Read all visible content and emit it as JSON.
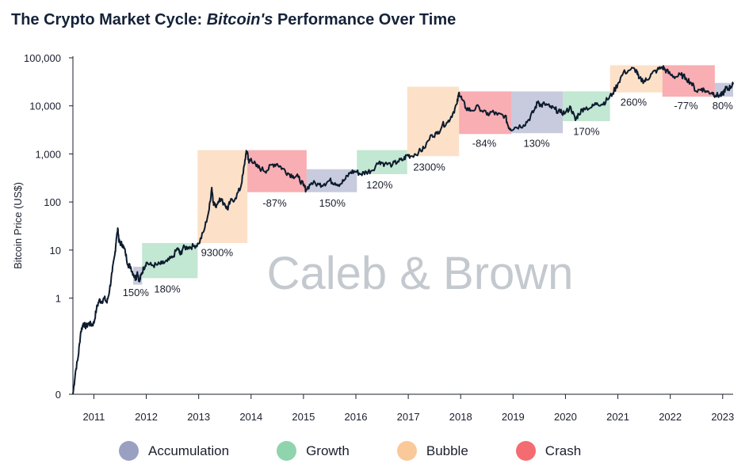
{
  "title": {
    "prefix": "The Crypto Market Cycle: ",
    "emph": "Bitcoin's",
    "suffix": " Performance Over Time"
  },
  "watermark": "Caleb & Brown",
  "colors": {
    "accumulation": "#9aa0c2",
    "growth": "#8fd4ad",
    "bubble": "#f9c99a",
    "crash": "#f36c72",
    "line": "#0d1b2e",
    "axis": "#1a1f2e"
  },
  "legend": [
    {
      "key": "accumulation",
      "label": "Accumulation"
    },
    {
      "key": "growth",
      "label": "Growth"
    },
    {
      "key": "bubble",
      "label": "Bubble"
    },
    {
      "key": "crash",
      "label": "Crash"
    }
  ],
  "chart_data": {
    "type": "line",
    "title": "The Crypto Market Cycle: Bitcoin's Performance Over Time",
    "ylabel": "Bitcoin Price (US$)",
    "xlabel": "",
    "y_scale": "log",
    "ylim": [
      0.01,
      100000
    ],
    "xlim": [
      2010.6,
      2023.2
    ],
    "y_ticks": [
      {
        "value": 0.01,
        "label": "0"
      },
      {
        "value": 1,
        "label": "1"
      },
      {
        "value": 10,
        "label": "10"
      },
      {
        "value": 100,
        "label": "100"
      },
      {
        "value": 1000,
        "label": "1,000"
      },
      {
        "value": 10000,
        "label": "10,000"
      },
      {
        "value": 100000,
        "label": "100,000"
      }
    ],
    "x_ticks": [
      "2011",
      "2012",
      "2013",
      "2014",
      "2015",
      "2016",
      "2017",
      "2018",
      "2019",
      "2020",
      "2021",
      "2022",
      "2023"
    ],
    "series": [
      {
        "name": "Bitcoin Price",
        "points": [
          [
            2010.6,
            0.01
          ],
          [
            2010.65,
            0.03
          ],
          [
            2010.7,
            0.06
          ],
          [
            2010.75,
            0.2
          ],
          [
            2010.8,
            0.3
          ],
          [
            2010.85,
            0.25
          ],
          [
            2010.9,
            0.3
          ],
          [
            2010.95,
            0.28
          ],
          [
            2011.0,
            0.3
          ],
          [
            2011.05,
            0.6
          ],
          [
            2011.1,
            0.9
          ],
          [
            2011.15,
            0.85
          ],
          [
            2011.2,
            1.0
          ],
          [
            2011.25,
            0.8
          ],
          [
            2011.3,
            1.5
          ],
          [
            2011.35,
            3.5
          ],
          [
            2011.4,
            8
          ],
          [
            2011.43,
            18
          ],
          [
            2011.46,
            27
          ],
          [
            2011.48,
            15
          ],
          [
            2011.5,
            14
          ],
          [
            2011.55,
            13
          ],
          [
            2011.6,
            9
          ],
          [
            2011.65,
            5
          ],
          [
            2011.7,
            4.5
          ],
          [
            2011.75,
            3.2
          ],
          [
            2011.8,
            2.5
          ],
          [
            2011.83,
            3.5
          ],
          [
            2011.87,
            2.2
          ],
          [
            2011.9,
            3.0
          ],
          [
            2011.95,
            4.2
          ],
          [
            2012.0,
            5.5
          ],
          [
            2012.1,
            4.8
          ],
          [
            2012.2,
            4.9
          ],
          [
            2012.3,
            5.2
          ],
          [
            2012.4,
            5.8
          ],
          [
            2012.5,
            7
          ],
          [
            2012.6,
            11
          ],
          [
            2012.65,
            8
          ],
          [
            2012.7,
            11
          ],
          [
            2012.8,
            11.5
          ],
          [
            2012.9,
            12
          ],
          [
            2013.0,
            13.5
          ],
          [
            2013.1,
            25
          ],
          [
            2013.2,
            70
          ],
          [
            2013.25,
            200
          ],
          [
            2013.28,
            100
          ],
          [
            2013.32,
            80
          ],
          [
            2013.4,
            120
          ],
          [
            2013.5,
            90
          ],
          [
            2013.55,
            70
          ],
          [
            2013.6,
            100
          ],
          [
            2013.7,
            120
          ],
          [
            2013.8,
            200
          ],
          [
            2013.85,
            400
          ],
          [
            2013.9,
            1000
          ],
          [
            2013.93,
            1100
          ],
          [
            2013.96,
            650
          ],
          [
            2014.0,
            800
          ],
          [
            2014.1,
            550
          ],
          [
            2014.2,
            480
          ],
          [
            2014.3,
            450
          ],
          [
            2014.4,
            600
          ],
          [
            2014.5,
            620
          ],
          [
            2014.6,
            500
          ],
          [
            2014.7,
            400
          ],
          [
            2014.8,
            350
          ],
          [
            2014.9,
            330
          ],
          [
            2015.0,
            220
          ],
          [
            2015.05,
            180
          ],
          [
            2015.15,
            250
          ],
          [
            2015.3,
            230
          ],
          [
            2015.4,
            240
          ],
          [
            2015.5,
            280
          ],
          [
            2015.6,
            250
          ],
          [
            2015.7,
            235
          ],
          [
            2015.8,
            300
          ],
          [
            2015.9,
            420
          ],
          [
            2016.0,
            430
          ],
          [
            2016.1,
            380
          ],
          [
            2016.2,
            420
          ],
          [
            2016.3,
            450
          ],
          [
            2016.45,
            700
          ],
          [
            2016.55,
            620
          ],
          [
            2016.7,
            600
          ],
          [
            2016.8,
            700
          ],
          [
            2016.9,
            750
          ],
          [
            2016.98,
            950
          ],
          [
            2017.05,
            900
          ],
          [
            2017.2,
            1100
          ],
          [
            2017.3,
            1300
          ],
          [
            2017.45,
            2500
          ],
          [
            2017.55,
            2600
          ],
          [
            2017.65,
            4000
          ],
          [
            2017.75,
            4500
          ],
          [
            2017.85,
            7000
          ],
          [
            2017.93,
            11000
          ],
          [
            2017.97,
            19000
          ],
          [
            2018.02,
            14000
          ],
          [
            2018.1,
            9000
          ],
          [
            2018.2,
            8000
          ],
          [
            2018.35,
            9500
          ],
          [
            2018.5,
            6500
          ],
          [
            2018.6,
            7500
          ],
          [
            2018.7,
            6500
          ],
          [
            2018.85,
            6300
          ],
          [
            2018.9,
            4000
          ],
          [
            2018.95,
            3300
          ],
          [
            2019.05,
            3600
          ],
          [
            2019.2,
            4000
          ],
          [
            2019.3,
            5200
          ],
          [
            2019.4,
            8000
          ],
          [
            2019.48,
            12500
          ],
          [
            2019.53,
            10000
          ],
          [
            2019.6,
            11000
          ],
          [
            2019.7,
            9500
          ],
          [
            2019.8,
            8500
          ],
          [
            2019.9,
            7300
          ],
          [
            2020.0,
            7200
          ],
          [
            2020.1,
            9500
          ],
          [
            2020.19,
            5000
          ],
          [
            2020.25,
            6800
          ],
          [
            2020.35,
            9000
          ],
          [
            2020.5,
            9300
          ],
          [
            2020.6,
            11500
          ],
          [
            2020.7,
            10800
          ],
          [
            2020.8,
            13500
          ],
          [
            2020.9,
            18000
          ],
          [
            2021.0,
            29000
          ],
          [
            2021.1,
            48000
          ],
          [
            2021.25,
            58000
          ],
          [
            2021.35,
            56000
          ],
          [
            2021.4,
            37000
          ],
          [
            2021.5,
            33000
          ],
          [
            2021.55,
            35000
          ],
          [
            2021.65,
            47000
          ],
          [
            2021.75,
            55000
          ],
          [
            2021.85,
            64000
          ],
          [
            2021.9,
            57000
          ],
          [
            2022.0,
            45000
          ],
          [
            2022.1,
            40000
          ],
          [
            2022.2,
            44000
          ],
          [
            2022.3,
            38000
          ],
          [
            2022.4,
            30000
          ],
          [
            2022.5,
            20000
          ],
          [
            2022.6,
            23000
          ],
          [
            2022.7,
            19500
          ],
          [
            2022.8,
            19000
          ],
          [
            2022.87,
            16500
          ],
          [
            2022.95,
            16700
          ],
          [
            2023.0,
            17000
          ],
          [
            2023.05,
            23000
          ],
          [
            2023.1,
            22000
          ],
          [
            2023.15,
            25000
          ],
          [
            2023.2,
            28000
          ]
        ]
      }
    ],
    "phases": [
      {
        "type": "accumulation",
        "x0": 2011.75,
        "x1": 2011.92,
        "ylo": 1.9,
        "yhi": 4.5,
        "label": "150%",
        "label_x": 2011.8,
        "label_y": 1.1
      },
      {
        "type": "growth",
        "x0": 2011.92,
        "x1": 2012.98,
        "ylo": 2.6,
        "yhi": 14,
        "label": "180%",
        "label_x": 2012.4,
        "label_y": 1.3
      },
      {
        "type": "bubble",
        "x0": 2012.98,
        "x1": 2013.93,
        "ylo": 14,
        "yhi": 1200,
        "label": "9300%",
        "label_x": 2013.35,
        "label_y": 7.5
      },
      {
        "type": "crash",
        "x0": 2013.93,
        "x1": 2015.06,
        "ylo": 160,
        "yhi": 1200,
        "label": "-87%",
        "label_x": 2014.45,
        "label_y": 80
      },
      {
        "type": "accumulation",
        "x0": 2015.06,
        "x1": 2016.02,
        "ylo": 160,
        "yhi": 480,
        "label": "150%",
        "label_x": 2015.55,
        "label_y": 80
      },
      {
        "type": "growth",
        "x0": 2016.02,
        "x1": 2016.98,
        "ylo": 380,
        "yhi": 1200,
        "label": "120%",
        "label_x": 2016.45,
        "label_y": 190
      },
      {
        "type": "bubble",
        "x0": 2016.98,
        "x1": 2017.97,
        "ylo": 900,
        "yhi": 25000,
        "label": "2300%",
        "label_x": 2017.4,
        "label_y": 450
      },
      {
        "type": "crash",
        "x0": 2017.97,
        "x1": 2018.97,
        "ylo": 2600,
        "yhi": 20000,
        "label": "-84%",
        "label_x": 2018.45,
        "label_y": 1400
      },
      {
        "type": "accumulation",
        "x0": 2018.97,
        "x1": 2019.95,
        "ylo": 2700,
        "yhi": 20000,
        "label": "130%",
        "label_x": 2019.45,
        "label_y": 1400
      },
      {
        "type": "growth",
        "x0": 2019.95,
        "x1": 2020.85,
        "ylo": 4800,
        "yhi": 20000,
        "label": "170%",
        "label_x": 2020.4,
        "label_y": 2500
      },
      {
        "type": "bubble",
        "x0": 2020.85,
        "x1": 2021.85,
        "ylo": 19000,
        "yhi": 70000,
        "label": "260%",
        "label_x": 2021.3,
        "label_y": 10000
      },
      {
        "type": "crash",
        "x0": 2021.85,
        "x1": 2022.85,
        "ylo": 15500,
        "yhi": 70000,
        "label": "-77%",
        "label_x": 2022.3,
        "label_y": 8500
      },
      {
        "type": "accumulation",
        "x0": 2022.85,
        "x1": 2023.2,
        "ylo": 15500,
        "yhi": 30000,
        "label": "80%",
        "label_x": 2023.0,
        "label_y": 8500
      }
    ]
  }
}
